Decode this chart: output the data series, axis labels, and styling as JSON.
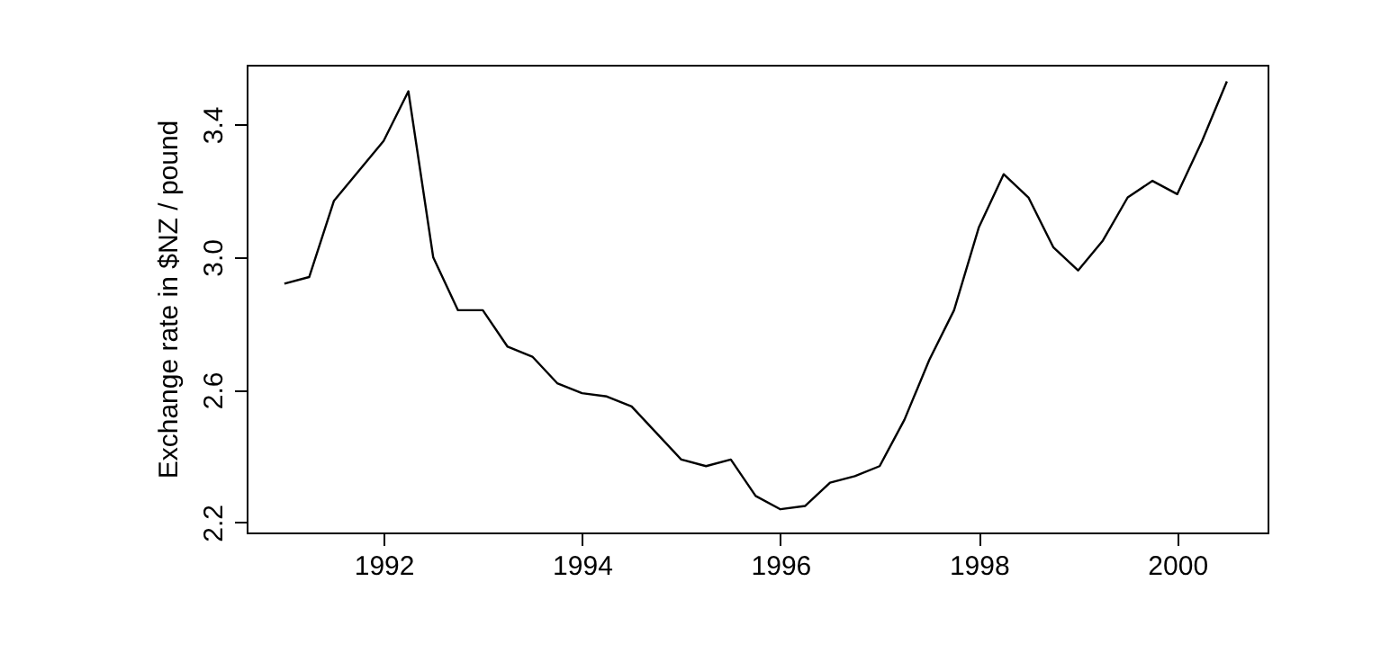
{
  "chart_data": {
    "type": "line",
    "ylabel": "Exchange rate in $NZ / pound",
    "x": [
      1991,
      1991.25,
      1991.5,
      1991.75,
      1992,
      1992.25,
      1992.5,
      1992.75,
      1993,
      1993.25,
      1993.5,
      1993.75,
      1994,
      1994.25,
      1994.5,
      1994.75,
      1995,
      1995.25,
      1995.5,
      1995.75,
      1996,
      1996.25,
      1996.5,
      1996.75,
      1997,
      1997.25,
      1997.5,
      1997.75,
      1998,
      1998.25,
      1998.5,
      1998.75,
      1999,
      1999.25,
      1999.5,
      1999.75,
      2000,
      2000.25,
      2000.5
    ],
    "series": [
      {
        "color": "#000000",
        "values": [
          2.92,
          2.94,
          3.17,
          3.26,
          3.35,
          3.5,
          3.0,
          2.84,
          2.84,
          2.73,
          2.7,
          2.62,
          2.59,
          2.58,
          2.55,
          2.47,
          2.39,
          2.37,
          2.39,
          2.28,
          2.24,
          2.25,
          2.32,
          2.34,
          2.37,
          2.51,
          2.69,
          2.84,
          3.09,
          3.25,
          3.18,
          3.03,
          2.96,
          3.05,
          3.18,
          3.23,
          3.19,
          3.35,
          3.53
        ]
      }
    ],
    "xlim": [
      1990.62,
      2000.91
    ],
    "ylim": [
      2.17,
      3.58
    ],
    "xticks": [
      1992,
      1994,
      1996,
      1998,
      2000
    ],
    "yticks": [
      2.2,
      2.6,
      {
        "value": 3.0,
        "label": "3.0"
      },
      3.4
    ],
    "line_style": "solid",
    "marker": "none"
  }
}
